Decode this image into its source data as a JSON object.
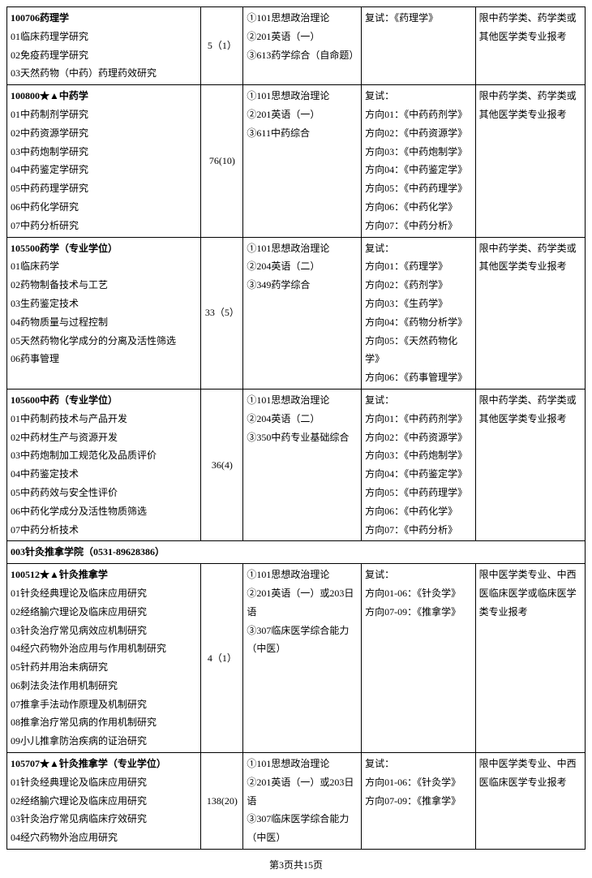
{
  "rows": [
    {
      "col1_title": "100706药理学",
      "col1_lines": [
        "01临床药理学研究",
        "02免疫药理学研究",
        "03天然药物（中药）药理药效研究"
      ],
      "col2": "5（1）",
      "col3": [
        "①101思想政治理论",
        "②201英语（一）",
        "③613药学综合（自命题）"
      ],
      "col4": [
        "复试：《药理学》"
      ],
      "col5": [
        "限中药学类、药学类或其他医学类专业报考"
      ]
    },
    {
      "col1_title": "100800★▲中药学",
      "col1_lines": [
        "01中药制剂学研究",
        "02中药资源学研究",
        "03中药炮制学研究",
        "04中药鉴定学研究",
        "05中药药理学研究",
        "06中药化学研究",
        "07中药分析研究"
      ],
      "col2": "76(10)",
      "col3": [
        "①101思想政治理论",
        "②201英语（一）",
        "③611中药综合"
      ],
      "col4": [
        "复试：",
        "方向01：《中药药剂学》",
        "方向02：《中药资源学》",
        "方向03：《中药炮制学》",
        "方向04：《中药鉴定学》",
        "方向05：《中药药理学》",
        "方向06：《中药化学》",
        "方向07：《中药分析》"
      ],
      "col5": [
        "限中药学类、药学类或其他医学类专业报考"
      ]
    },
    {
      "col1_title": "105500药学（专业学位）",
      "col1_lines": [
        "01临床药学",
        "02药物制备技术与工艺",
        "03生药鉴定技术",
        "04药物质量与过程控制",
        "05天然药物化学成分的分离及活性筛选",
        "06药事管理"
      ],
      "col2": "33（5）",
      "col3": [
        "①101思想政治理论",
        "②204英语（二）",
        "③349药学综合"
      ],
      "col4": [
        "复试：",
        "方向01：《药理学》",
        "方向02：《药剂学》",
        "方向03：《生药学》",
        "方向04：《药物分析学》",
        "方向05：《天然药物化学》",
        "方向06：《药事管理学》"
      ],
      "col5": [
        "限中药学类、药学类或其他医学类专业报考"
      ]
    },
    {
      "col1_title": "105600中药（专业学位）",
      "col1_lines": [
        "01中药制药技术与产品开发",
        "02中药材生产与资源开发",
        "03中药炮制加工规范化及品质评价",
        "04中药鉴定技术",
        "05中药药效与安全性评价",
        "06中药化学成分及活性物质筛选",
        "07中药分析技术"
      ],
      "col2": "36(4)",
      "col3": [
        "①101思想政治理论",
        "②204英语（二）",
        "③350中药专业基础综合"
      ],
      "col4": [
        "复试：",
        "方向01：《中药药剂学》",
        "方向02：《中药资源学》",
        "方向03：《中药炮制学》",
        "方向04：《中药鉴定学》",
        "方向05：《中药药理学》",
        "方向06：《中药化学》",
        "方向07：《中药分析》"
      ],
      "col5": [
        "限中药学类、药学类或其他医学类专业报考"
      ]
    }
  ],
  "section_header": "003针灸推拿学院（0531-89628386）",
  "rows2": [
    {
      "col1_title": "100512★▲针灸推拿学",
      "col1_lines": [
        "01针灸经典理论及临床应用研究",
        "02经络腧穴理论及临床应用研究",
        "03针灸治疗常见病效应机制研究",
        "04经穴药物外治应用与作用机制研究",
        "05针药并用治未病研究",
        "06刺法灸法作用机制研究",
        "07推拿手法动作原理及机制研究",
        "08推拿治疗常见病的作用机制研究",
        "09小儿推拿防治疾病的证治研究"
      ],
      "col2": "4（1）",
      "col3": [
        "①101思想政治理论",
        "②201英语（一）或203日语",
        "③307临床医学综合能力（中医）"
      ],
      "col4": [
        "复试：",
        "方向01-06：《针灸学》",
        "方向07-09：《推拿学》"
      ],
      "col5": [
        "限中医学类专业、中西医临床医学或临床医学类专业报考"
      ]
    },
    {
      "col1_title": "105707★▲针灸推拿学（专业学位）",
      "col1_lines": [
        "01针灸经典理论及临床应用研究",
        "02经络腧穴理论及临床应用研究",
        "03针灸治疗常见病临床疗效研究",
        "04经穴药物外治应用研究"
      ],
      "col2": "138(20)",
      "col3": [
        "①101思想政治理论",
        "②201英语（一）或203日语",
        "③307临床医学综合能力（中医）"
      ],
      "col4": [
        "复试：",
        "方向01-06：《针灸学》",
        "方向07-09：《推拿学》"
      ],
      "col5": [
        "限中医学类专业、中西医临床医学专业报考"
      ]
    }
  ],
  "pager": "第3页共15页"
}
